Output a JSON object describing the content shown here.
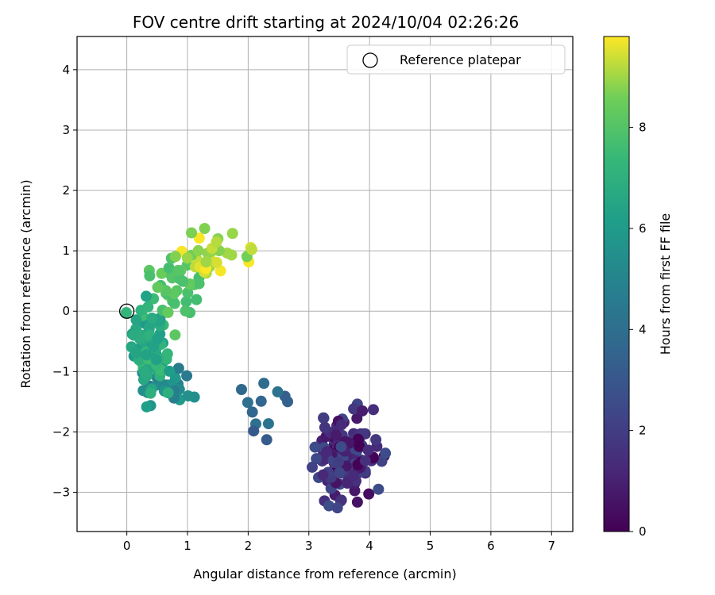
{
  "chart_data": {
    "type": "scatter",
    "title": "FOV centre drift starting at 2024/10/04 02:26:26",
    "xlabel": "Angular distance from reference (arcmin)",
    "ylabel": "Rotation from reference (arcmin)",
    "xlim": [
      -0.82,
      7.35
    ],
    "ylim": [
      -3.65,
      4.55
    ],
    "xticks": [
      0,
      1,
      2,
      3,
      4,
      5,
      6,
      7
    ],
    "yticks": [
      -3,
      -2,
      -1,
      0,
      1,
      2,
      3,
      4
    ],
    "grid": true,
    "legend": {
      "placement": "top-right",
      "entries": [
        "Reference platepar"
      ]
    },
    "reference_point": {
      "x": 0,
      "y": 0,
      "label": "Reference platepar"
    },
    "colorbar": {
      "label": "Hours from first FF file",
      "range": [
        0,
        9.8
      ],
      "ticks": [
        0,
        2,
        4,
        6,
        8
      ],
      "colormap": "viridis"
    },
    "clusters": [
      {
        "hours": [
          0.0,
          2.6
        ],
        "x_center": 3.65,
        "y_center": -2.4,
        "x_spread": 0.32,
        "y_spread": 0.42,
        "count": 135,
        "seed": 11
      },
      {
        "hours": [
          2.8,
          4.4
        ],
        "x_center": 2.2,
        "y_center": -1.6,
        "x_spread": 0.35,
        "y_spread": 0.3,
        "count": 12,
        "seed": 23
      },
      {
        "hours": [
          4.4,
          6.0
        ],
        "x_center": 0.65,
        "y_center": -1.25,
        "x_spread": 0.3,
        "y_spread": 0.25,
        "count": 25,
        "seed": 31
      },
      {
        "hours": [
          6.0,
          7.6
        ],
        "x_center": 0.4,
        "y_center": -0.6,
        "x_spread": 0.22,
        "y_spread": 0.42,
        "count": 75,
        "seed": 47
      },
      {
        "hours": [
          7.6,
          8.6
        ],
        "x_center": 0.85,
        "y_center": 0.35,
        "x_spread": 0.3,
        "y_spread": 0.3,
        "count": 35,
        "seed": 53
      },
      {
        "hours": [
          8.6,
          9.8
        ],
        "x_center": 1.4,
        "y_center": 0.95,
        "x_spread": 0.35,
        "y_spread": 0.25,
        "count": 35,
        "seed": 71
      }
    ]
  }
}
